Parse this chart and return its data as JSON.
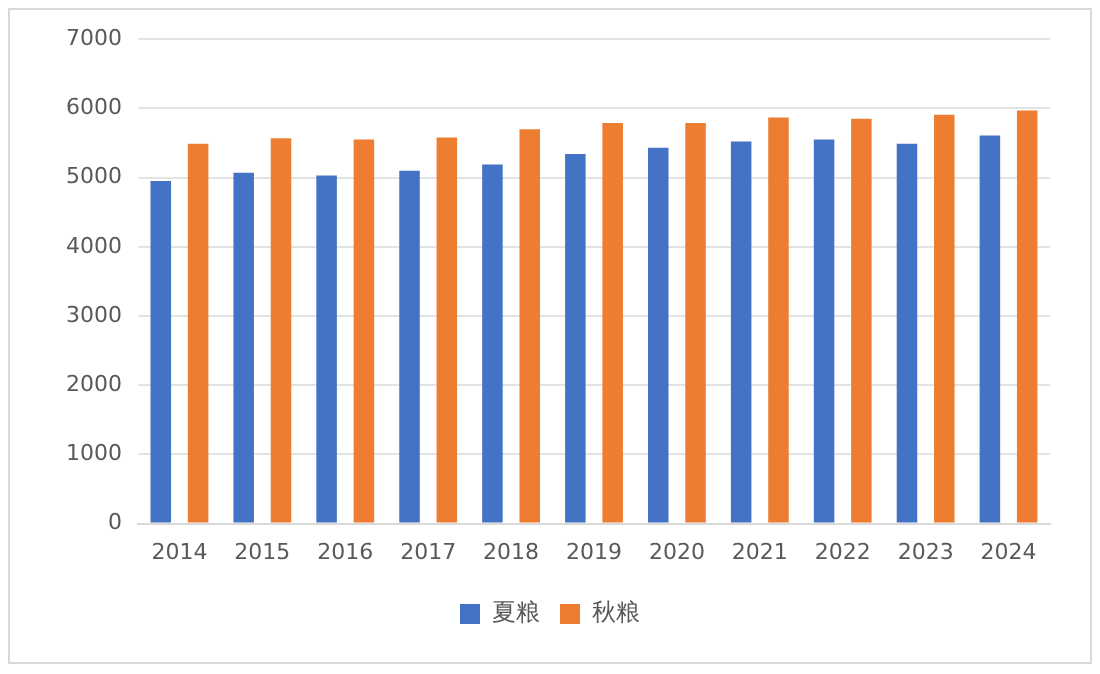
{
  "chart_data": {
    "type": "bar",
    "categories": [
      "2014",
      "2015",
      "2016",
      "2017",
      "2018",
      "2019",
      "2020",
      "2021",
      "2022",
      "2023",
      "2024"
    ],
    "series": [
      {
        "name": "夏粮",
        "color": "#4472c4",
        "values": [
          4950,
          5070,
          5030,
          5100,
          5190,
          5340,
          5430,
          5520,
          5550,
          5490,
          5610
        ]
      },
      {
        "name": "秋粮",
        "color": "#ed7d31",
        "values": [
          5490,
          5570,
          5550,
          5580,
          5700,
          5790,
          5790,
          5870,
          5850,
          5910,
          5970
        ]
      }
    ],
    "ylim": [
      0,
      7000
    ],
    "yticks": [
      0,
      1000,
      2000,
      3000,
      4000,
      5000,
      6000,
      7000
    ],
    "grid": "y",
    "legend": "bottom"
  }
}
